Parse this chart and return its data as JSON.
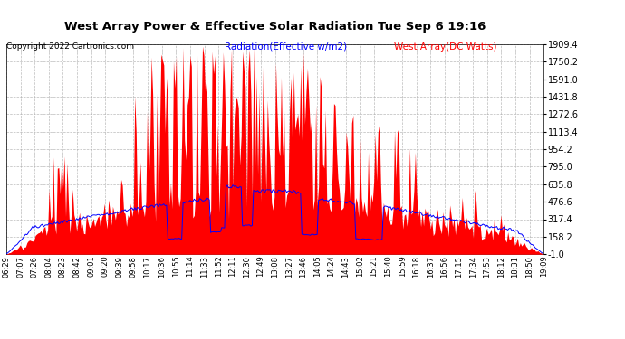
{
  "title": "West Array Power & Effective Solar Radiation Tue Sep 6 19:16",
  "copyright": "Copyright 2022 Cartronics.com",
  "legend_radiation": "Radiation(Effective w/m2)",
  "legend_west": "West Array(DC Watts)",
  "yticks": [
    1909.4,
    1750.2,
    1591.0,
    1431.8,
    1272.6,
    1113.4,
    954.2,
    795.0,
    635.8,
    476.6,
    317.4,
    158.2,
    -1.0
  ],
  "ymin": -1.0,
  "ymax": 1909.4,
  "background_color": "#ffffff",
  "plot_bg_color": "#ffffff",
  "grid_color": "#aaaaaa",
  "red_fill_color": "#ff0000",
  "blue_line_color": "#0000ff",
  "title_color": "#000000",
  "copyright_color": "#000000",
  "radiation_label_color": "#0000ff",
  "west_label_color": "#ff0000",
  "x_labels": [
    "06:29",
    "07:07",
    "07:26",
    "08:04",
    "08:23",
    "08:42",
    "09:01",
    "09:20",
    "09:39",
    "09:58",
    "10:17",
    "10:36",
    "10:55",
    "11:14",
    "11:33",
    "11:52",
    "12:11",
    "12:30",
    "12:49",
    "13:08",
    "13:27",
    "13:46",
    "14:05",
    "14:24",
    "14:43",
    "15:02",
    "15:21",
    "15:40",
    "15:59",
    "16:18",
    "16:37",
    "16:56",
    "17:15",
    "17:34",
    "17:53",
    "18:12",
    "18:31",
    "18:50",
    "19:09"
  ]
}
